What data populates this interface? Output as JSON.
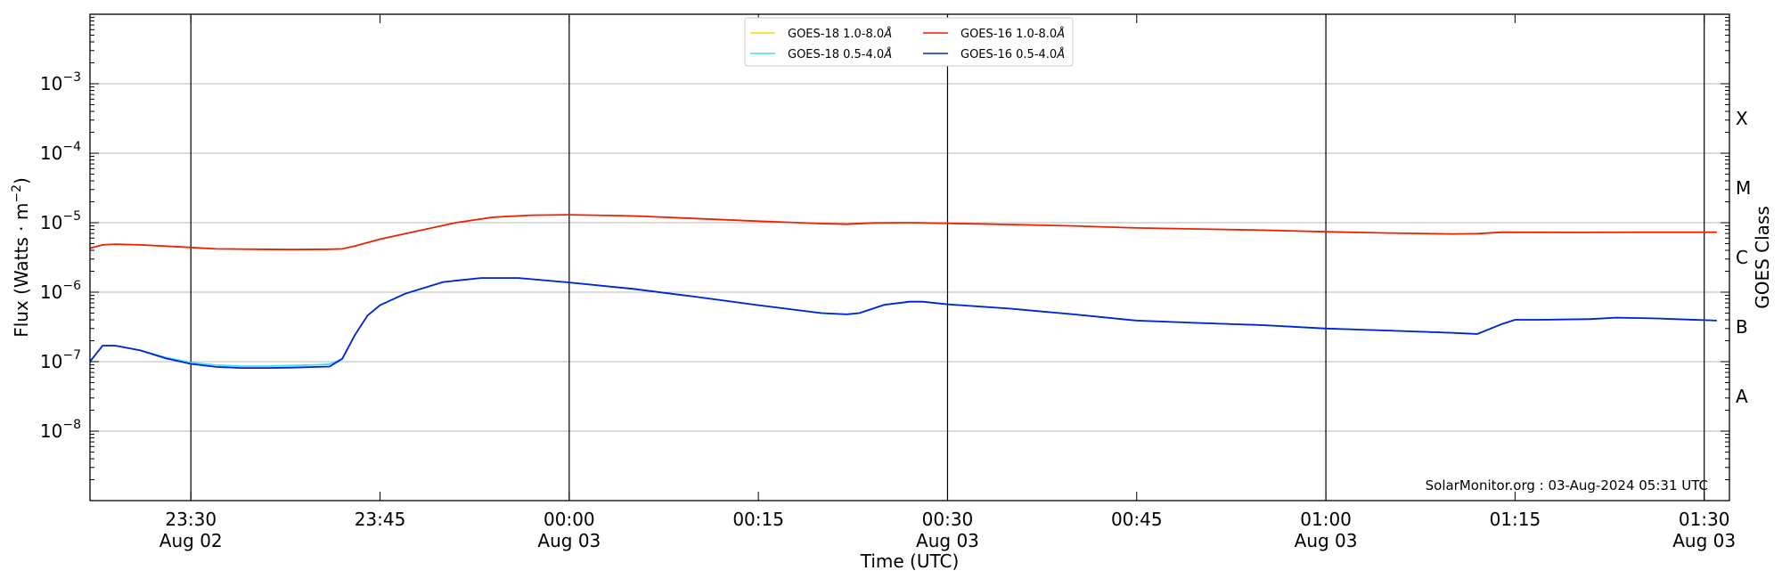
{
  "chart_data": {
    "type": "line",
    "xlabel": "Time (UTC)",
    "ylabel_main": "Flux (Watts · m",
    "ylabel_sup": "−2",
    "ylabel_close": ")",
    "ylabel_right": "GOES Class",
    "y_scale": "log",
    "ylim": [
      1e-09,
      0.01
    ],
    "xlim": [
      "2024-08-02T23:22",
      "2024-08-03T01:32"
    ],
    "grid": "horizontal at decades",
    "legend_position": "top-center",
    "y_ticks": [
      {
        "exp": -8,
        "base": "10",
        "sup": "−8"
      },
      {
        "exp": -7,
        "base": "10",
        "sup": "−7"
      },
      {
        "exp": -6,
        "base": "10",
        "sup": "−6"
      },
      {
        "exp": -5,
        "base": "10",
        "sup": "−5"
      },
      {
        "exp": -4,
        "base": "10",
        "sup": "−4"
      },
      {
        "exp": -3,
        "base": "10",
        "sup": "−3"
      }
    ],
    "x_ticks": [
      {
        "t": "2024-08-02T23:30",
        "line1": "23:30",
        "line2": "Aug 02",
        "vline": true
      },
      {
        "t": "2024-08-02T23:45",
        "line1": "23:45",
        "line2": "",
        "vline": false
      },
      {
        "t": "2024-08-03T00:00",
        "line1": "00:00",
        "line2": "Aug 03",
        "vline": true
      },
      {
        "t": "2024-08-03T00:15",
        "line1": "00:15",
        "line2": "",
        "vline": false
      },
      {
        "t": "2024-08-03T00:30",
        "line1": "00:30",
        "line2": "Aug 03",
        "vline": true
      },
      {
        "t": "2024-08-03T00:45",
        "line1": "00:45",
        "line2": "",
        "vline": false
      },
      {
        "t": "2024-08-03T01:00",
        "line1": "01:00",
        "line2": "Aug 03",
        "vline": true
      },
      {
        "t": "2024-08-03T01:15",
        "line1": "01:15",
        "line2": "",
        "vline": false
      },
      {
        "t": "2024-08-03T01:30",
        "line1": "01:30",
        "line2": "Aug 03",
        "vline": true
      }
    ],
    "goes_classes": [
      {
        "label": "X",
        "exp": -4
      },
      {
        "label": "M",
        "exp": -5
      },
      {
        "label": "C",
        "exp": -6
      },
      {
        "label": "B",
        "exp": -7
      },
      {
        "label": "A",
        "exp": -8
      }
    ],
    "series": [
      {
        "name": "GOES-18 1.0-8.0Å",
        "label_base": "GOES-18 1.0-8.0",
        "color": "#ffd700",
        "points": []
      },
      {
        "name": "GOES-18 0.5-4.0Å",
        "label_base": "GOES-18 0.5-4.0",
        "color": "#40e0f0",
        "points": [
          [
            "2024-08-02T23:22",
            1e-07
          ],
          [
            "2024-08-02T23:23",
            1.7e-07
          ],
          [
            "2024-08-02T23:24",
            1.7e-07
          ],
          [
            "2024-08-02T23:26",
            1.45e-07
          ],
          [
            "2024-08-02T23:28",
            1.15e-07
          ],
          [
            "2024-08-02T23:30",
            9.7e-08
          ],
          [
            "2024-08-02T23:32",
            8.9e-08
          ],
          [
            "2024-08-02T23:34",
            8.6e-08
          ],
          [
            "2024-08-02T23:36",
            8.6e-08
          ],
          [
            "2024-08-02T23:38",
            8.8e-08
          ],
          [
            "2024-08-02T23:40",
            9e-08
          ],
          [
            "2024-08-02T23:41",
            9.2e-08
          ],
          [
            "2024-08-02T23:42",
            1.1e-07
          ],
          [
            "2024-08-02T23:43",
            2.4e-07
          ],
          [
            "2024-08-02T23:44",
            4.6e-07
          ],
          [
            "2024-08-02T23:45",
            6.5e-07
          ],
          [
            "2024-08-02T23:47",
            9.5e-07
          ],
          [
            "2024-08-02T23:50",
            1.4e-06
          ],
          [
            "2024-08-02T23:53",
            1.6e-06
          ],
          [
            "2024-08-02T23:56",
            1.6e-06
          ],
          [
            "2024-08-03T00:00",
            1.38e-06
          ],
          [
            "2024-08-03T00:05",
            1.12e-06
          ],
          [
            "2024-08-03T00:10",
            8.6e-07
          ],
          [
            "2024-08-03T00:15",
            6.5e-07
          ],
          [
            "2024-08-03T00:20",
            5e-07
          ],
          [
            "2024-08-03T00:22",
            4.8e-07
          ],
          [
            "2024-08-03T00:23",
            5e-07
          ],
          [
            "2024-08-03T00:25",
            6.6e-07
          ],
          [
            "2024-08-03T00:27",
            7.3e-07
          ],
          [
            "2024-08-03T00:28",
            7.3e-07
          ],
          [
            "2024-08-03T00:30",
            6.7e-07
          ],
          [
            "2024-08-03T00:35",
            5.8e-07
          ],
          [
            "2024-08-03T00:40",
            4.8e-07
          ],
          [
            "2024-08-03T00:45",
            3.9e-07
          ],
          [
            "2024-08-03T00:50",
            3.6e-07
          ],
          [
            "2024-08-03T00:55",
            3.35e-07
          ],
          [
            "2024-08-03T01:00",
            3e-07
          ],
          [
            "2024-08-03T01:05",
            2.8e-07
          ],
          [
            "2024-08-03T01:10",
            2.6e-07
          ],
          [
            "2024-08-03T01:12",
            2.5e-07
          ],
          [
            "2024-08-03T01:14",
            3.5e-07
          ],
          [
            "2024-08-03T01:15",
            4e-07
          ],
          [
            "2024-08-03T01:17",
            4e-07
          ],
          [
            "2024-08-03T01:21",
            4.1e-07
          ],
          [
            "2024-08-03T01:23",
            4.3e-07
          ],
          [
            "2024-08-03T01:26",
            4.2e-07
          ],
          [
            "2024-08-03T01:31",
            3.9e-07
          ]
        ]
      },
      {
        "name": "GOES-16 1.0-8.0Å",
        "label_base": "GOES-16 1.0-8.0",
        "color": "#ee2200",
        "points": [
          [
            "2024-08-02T23:22",
            4.3e-06
          ],
          [
            "2024-08-02T23:23",
            4.8e-06
          ],
          [
            "2024-08-02T23:24",
            4.9e-06
          ],
          [
            "2024-08-02T23:26",
            4.8e-06
          ],
          [
            "2024-08-02T23:28",
            4.6e-06
          ],
          [
            "2024-08-02T23:30",
            4.4e-06
          ],
          [
            "2024-08-02T23:32",
            4.2e-06
          ],
          [
            "2024-08-02T23:35",
            4.15e-06
          ],
          [
            "2024-08-02T23:38",
            4.1e-06
          ],
          [
            "2024-08-02T23:41",
            4.15e-06
          ],
          [
            "2024-08-02T23:42",
            4.2e-06
          ],
          [
            "2024-08-02T23:43",
            4.6e-06
          ],
          [
            "2024-08-02T23:45",
            5.8e-06
          ],
          [
            "2024-08-02T23:48",
            7.6e-06
          ],
          [
            "2024-08-02T23:51",
            1e-05
          ],
          [
            "2024-08-02T23:54",
            1.2e-05
          ],
          [
            "2024-08-02T23:57",
            1.28e-05
          ],
          [
            "2024-08-03T00:00",
            1.3e-05
          ],
          [
            "2024-08-03T00:05",
            1.25e-05
          ],
          [
            "2024-08-03T00:10",
            1.15e-05
          ],
          [
            "2024-08-03T00:15",
            1.05e-05
          ],
          [
            "2024-08-03T00:20",
            9.7e-06
          ],
          [
            "2024-08-03T00:22",
            9.5e-06
          ],
          [
            "2024-08-03T00:24",
            9.9e-06
          ],
          [
            "2024-08-03T00:27",
            1e-05
          ],
          [
            "2024-08-03T00:30",
            9.8e-06
          ],
          [
            "2024-08-03T00:35",
            9.4e-06
          ],
          [
            "2024-08-03T00:40",
            9e-06
          ],
          [
            "2024-08-03T00:45",
            8.4e-06
          ],
          [
            "2024-08-03T00:50",
            8.1e-06
          ],
          [
            "2024-08-03T00:55",
            7.8e-06
          ],
          [
            "2024-08-03T01:00",
            7.4e-06
          ],
          [
            "2024-08-03T01:05",
            7.1e-06
          ],
          [
            "2024-08-03T01:10",
            6.9e-06
          ],
          [
            "2024-08-03T01:12",
            6.95e-06
          ],
          [
            "2024-08-03T01:14",
            7.3e-06
          ],
          [
            "2024-08-03T01:20",
            7.25e-06
          ],
          [
            "2024-08-03T01:25",
            7.3e-06
          ],
          [
            "2024-08-03T01:31",
            7.3e-06
          ]
        ]
      },
      {
        "name": "GOES-16 0.5-4.0Å",
        "label_base": "GOES-16 0.5-4.0",
        "color": "#0022dd",
        "points": [
          [
            "2024-08-02T23:22",
            1e-07
          ],
          [
            "2024-08-02T23:23",
            1.7e-07
          ],
          [
            "2024-08-02T23:24",
            1.7e-07
          ],
          [
            "2024-08-02T23:26",
            1.45e-07
          ],
          [
            "2024-08-02T23:28",
            1.12e-07
          ],
          [
            "2024-08-02T23:30",
            9.3e-08
          ],
          [
            "2024-08-02T23:32",
            8.4e-08
          ],
          [
            "2024-08-02T23:34",
            8.1e-08
          ],
          [
            "2024-08-02T23:36",
            8.1e-08
          ],
          [
            "2024-08-02T23:38",
            8.2e-08
          ],
          [
            "2024-08-02T23:40",
            8.4e-08
          ],
          [
            "2024-08-02T23:41",
            8.5e-08
          ],
          [
            "2024-08-02T23:42",
            1.1e-07
          ],
          [
            "2024-08-02T23:43",
            2.4e-07
          ],
          [
            "2024-08-02T23:44",
            4.6e-07
          ],
          [
            "2024-08-02T23:45",
            6.5e-07
          ],
          [
            "2024-08-02T23:47",
            9.5e-07
          ],
          [
            "2024-08-02T23:50",
            1.4e-06
          ],
          [
            "2024-08-02T23:53",
            1.6e-06
          ],
          [
            "2024-08-02T23:56",
            1.6e-06
          ],
          [
            "2024-08-03T00:00",
            1.38e-06
          ],
          [
            "2024-08-03T00:05",
            1.12e-06
          ],
          [
            "2024-08-03T00:10",
            8.6e-07
          ],
          [
            "2024-08-03T00:15",
            6.5e-07
          ],
          [
            "2024-08-03T00:20",
            5e-07
          ],
          [
            "2024-08-03T00:22",
            4.8e-07
          ],
          [
            "2024-08-03T00:23",
            5e-07
          ],
          [
            "2024-08-03T00:25",
            6.6e-07
          ],
          [
            "2024-08-03T00:27",
            7.3e-07
          ],
          [
            "2024-08-03T00:28",
            7.3e-07
          ],
          [
            "2024-08-03T00:30",
            6.7e-07
          ],
          [
            "2024-08-03T00:35",
            5.8e-07
          ],
          [
            "2024-08-03T00:40",
            4.8e-07
          ],
          [
            "2024-08-03T00:45",
            3.9e-07
          ],
          [
            "2024-08-03T00:50",
            3.6e-07
          ],
          [
            "2024-08-03T00:55",
            3.35e-07
          ],
          [
            "2024-08-03T01:00",
            3e-07
          ],
          [
            "2024-08-03T01:05",
            2.8e-07
          ],
          [
            "2024-08-03T01:10",
            2.6e-07
          ],
          [
            "2024-08-03T01:12",
            2.5e-07
          ],
          [
            "2024-08-03T01:14",
            3.5e-07
          ],
          [
            "2024-08-03T01:15",
            4e-07
          ],
          [
            "2024-08-03T01:17",
            4e-07
          ],
          [
            "2024-08-03T01:21",
            4.1e-07
          ],
          [
            "2024-08-03T01:23",
            4.3e-07
          ],
          [
            "2024-08-03T01:26",
            4.2e-07
          ],
          [
            "2024-08-03T01:31",
            3.9e-07
          ]
        ]
      }
    ],
    "legend_order": [
      0,
      1,
      2,
      3
    ],
    "credit": "SolarMonitor.org : 03-Aug-2024 05:31 UTC"
  }
}
